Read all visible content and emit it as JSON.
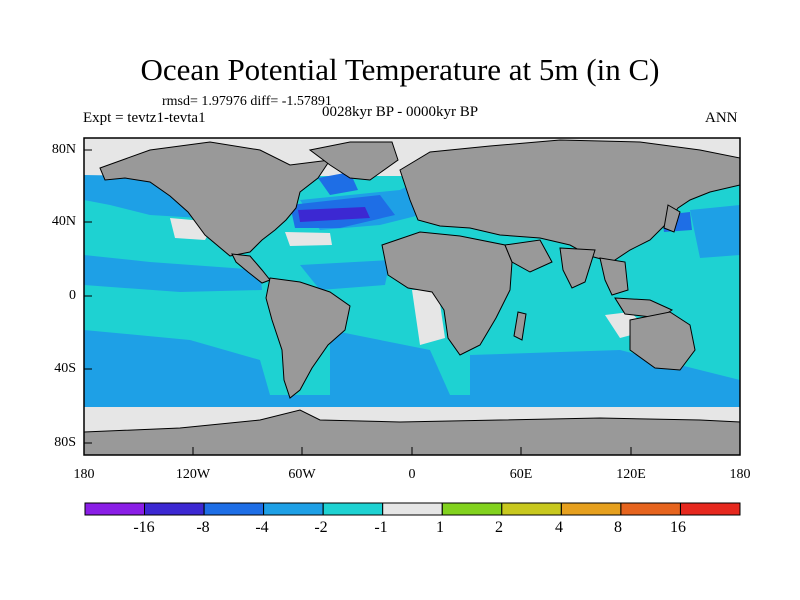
{
  "title": "Ocean Potential Temperature at 5m (in C)",
  "stats": "rmsd= 1.97976 diff= -1.57891",
  "experiment": "Expt = tevtz1-tevta1",
  "period": "0028kyr BP - 0000kyr BP",
  "season": "ANN",
  "lat_labels": [
    "80N",
    "40N",
    "0",
    "40S",
    "80S"
  ],
  "lon_labels": [
    "180",
    "120W",
    "60W",
    "0",
    "60E",
    "120E",
    "180"
  ],
  "colorbar": {
    "labels": [
      "-16",
      "-8",
      "-4",
      "-2",
      "-1",
      "1",
      "2",
      "4",
      "8",
      "16"
    ],
    "colors": [
      "#8a1ee6",
      "#3c28d2",
      "#1e6ee6",
      "#1ea0e6",
      "#1ed2d2",
      "#e6e6e6",
      "#82d21e",
      "#c8c81e",
      "#e6a01e",
      "#e6641e",
      "#e6281e"
    ]
  },
  "map_colors": {
    "land": "#999999",
    "near_zero": "#e6e6e6",
    "cool_1_2": "#1ed2d2",
    "cool_2_4": "#1ea0e6",
    "cool_4_8": "#1e6ee6",
    "cool_8_16": "#3c28d2",
    "warm_1_2": "#82d21e",
    "warm_2_4": "#c8c81e"
  }
}
